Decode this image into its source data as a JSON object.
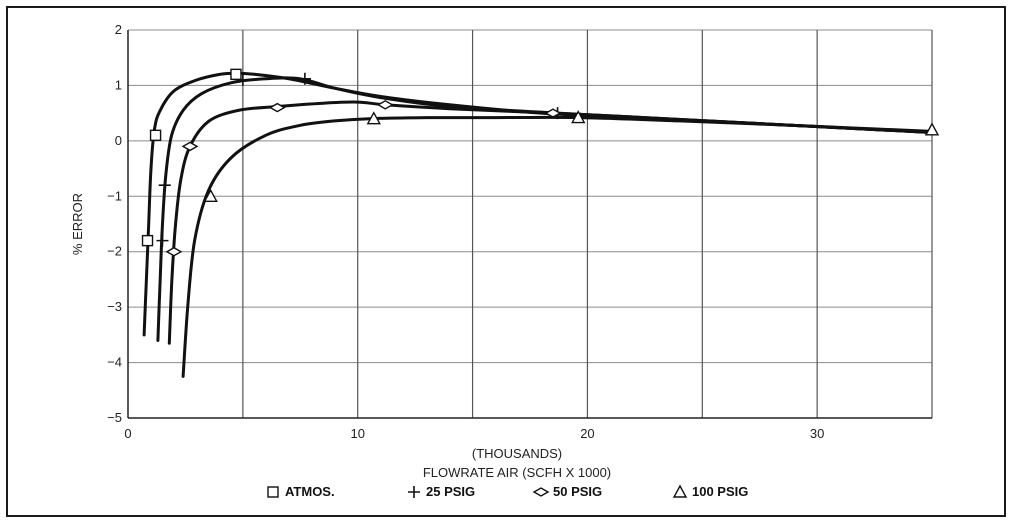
{
  "chart_data": {
    "type": "line",
    "xlabel": "FLOWRATE AIR (SCFH X 1000)",
    "xlabel_sub": "(THOUSANDS)",
    "ylabel": "% ERROR",
    "xlim": [
      0,
      35
    ],
    "ylim": [
      -5,
      2
    ],
    "x_ticks": [
      0,
      10,
      20,
      30
    ],
    "y_ticks": [
      2,
      1,
      0,
      -1,
      -2,
      -3,
      -4,
      -5
    ],
    "y_tick_labels": [
      "2",
      "1",
      "0",
      "−1",
      "−2",
      "−3",
      "−4",
      "−5"
    ],
    "x_gridlines": [
      0,
      5,
      10,
      15,
      20,
      25,
      30,
      35
    ],
    "grid": true,
    "legend_position": "bottom",
    "series": [
      {
        "name": "ATMOS.",
        "marker": "square",
        "curve": [
          [
            0.7,
            -3.5
          ],
          [
            0.8,
            -2.5
          ],
          [
            0.9,
            -1.5
          ],
          [
            1.0,
            -0.5
          ],
          [
            1.15,
            0.2
          ],
          [
            1.4,
            0.55
          ],
          [
            2.0,
            0.9
          ],
          [
            3.0,
            1.1
          ],
          [
            4.0,
            1.2
          ],
          [
            4.7,
            1.22
          ],
          [
            5.5,
            1.2
          ],
          [
            7.0,
            1.12
          ],
          [
            9.0,
            0.95
          ],
          [
            11.0,
            0.8
          ],
          [
            14.0,
            0.65
          ],
          [
            18.0,
            0.5
          ],
          [
            22.0,
            0.42
          ],
          [
            28.0,
            0.3
          ],
          [
            35.0,
            0.15
          ]
        ],
        "points": [
          [
            0.85,
            -1.8
          ],
          [
            1.2,
            0.1
          ],
          [
            4.7,
            1.2
          ]
        ]
      },
      {
        "name": "25 PSIG",
        "marker": "plus",
        "curve": [
          [
            1.3,
            -3.6
          ],
          [
            1.4,
            -2.5
          ],
          [
            1.5,
            -1.5
          ],
          [
            1.65,
            -0.6
          ],
          [
            1.9,
            0.1
          ],
          [
            2.4,
            0.55
          ],
          [
            3.2,
            0.85
          ],
          [
            4.5,
            1.05
          ],
          [
            6.0,
            1.12
          ],
          [
            7.5,
            1.12
          ],
          [
            9.0,
            0.95
          ],
          [
            11.0,
            0.78
          ],
          [
            14.0,
            0.62
          ],
          [
            18.7,
            0.5
          ],
          [
            22.0,
            0.43
          ],
          [
            28.0,
            0.3
          ],
          [
            35.0,
            0.15
          ]
        ],
        "points": [
          [
            1.5,
            -1.8
          ],
          [
            1.6,
            -0.8
          ],
          [
            5.0,
            1.1
          ],
          [
            7.7,
            1.12
          ],
          [
            18.7,
            0.5
          ]
        ]
      },
      {
        "name": "50 PSIG",
        "marker": "diamond",
        "curve": [
          [
            1.8,
            -3.65
          ],
          [
            1.9,
            -2.6
          ],
          [
            2.05,
            -1.6
          ],
          [
            2.3,
            -0.7
          ],
          [
            2.7,
            -0.1
          ],
          [
            3.5,
            0.35
          ],
          [
            4.8,
            0.55
          ],
          [
            6.5,
            0.62
          ],
          [
            8.5,
            0.68
          ],
          [
            10.0,
            0.7
          ],
          [
            11.2,
            0.65
          ],
          [
            14.0,
            0.58
          ],
          [
            18.5,
            0.5
          ],
          [
            22.0,
            0.43
          ],
          [
            28.0,
            0.3
          ],
          [
            35.0,
            0.15
          ]
        ],
        "points": [
          [
            2.0,
            -2.0
          ],
          [
            2.7,
            -0.1
          ],
          [
            6.5,
            0.6
          ],
          [
            11.2,
            0.65
          ],
          [
            18.5,
            0.5
          ]
        ]
      },
      {
        "name": "100 PSIG",
        "marker": "triangle",
        "curve": [
          [
            2.4,
            -4.25
          ],
          [
            2.6,
            -3.0
          ],
          [
            2.9,
            -1.8
          ],
          [
            3.5,
            -0.9
          ],
          [
            4.5,
            -0.3
          ],
          [
            6.0,
            0.1
          ],
          [
            7.5,
            0.28
          ],
          [
            9.0,
            0.36
          ],
          [
            10.5,
            0.4
          ],
          [
            13.0,
            0.42
          ],
          [
            16.0,
            0.42
          ],
          [
            19.6,
            0.42
          ],
          [
            24.0,
            0.36
          ],
          [
            30.0,
            0.26
          ],
          [
            35.0,
            0.17
          ]
        ],
        "points": [
          [
            3.6,
            -1.0
          ],
          [
            10.7,
            0.4
          ],
          [
            19.6,
            0.42
          ],
          [
            35.0,
            0.2
          ]
        ]
      }
    ]
  }
}
